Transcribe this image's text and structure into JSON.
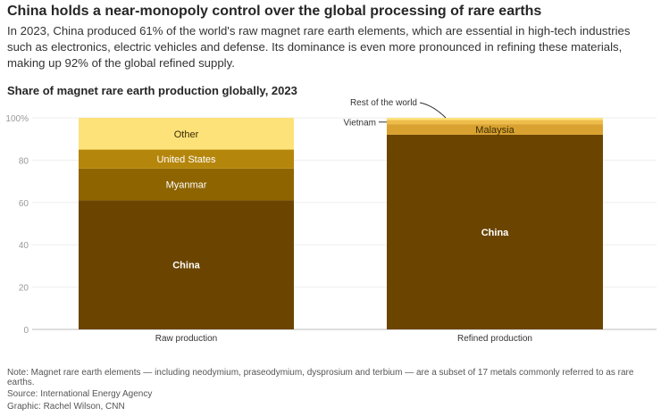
{
  "title": "China holds a near-monopoly control over the global processing of rare earths",
  "subtitle": "In 2023, China produced 61% of the world's raw magnet rare earth elements, which are essential in high-tech industries such as electronics, electric vehicles and defense. Its dominance is even more pronounced in refining these materials, making up 92% of the global refined supply.",
  "note": "Note: Magnet rare earth elements — including neodymium, praseodymium, dysprosium and terbium — are a subset of 17 metals commonly referred to as rare earths.",
  "source": "Source: International Energy Agency",
  "credit": "Graphic: Rachel Wilson, CNN",
  "chart_data": {
    "type": "stacked-bar",
    "title": "Share of magnet rare earth production globally, 2023",
    "ylim": [
      0,
      100
    ],
    "yticks": [
      "0",
      "20",
      "40",
      "60",
      "80",
      "100%"
    ],
    "grid": true,
    "categories": [
      "Raw production",
      "Refined production"
    ],
    "bars": [
      {
        "category": "Raw production",
        "segments": [
          {
            "name": "China",
            "value": 61,
            "color": "#6b4500"
          },
          {
            "name": "Myanmar",
            "value": 15,
            "color": "#8e6400"
          },
          {
            "name": "United States",
            "value": 9,
            "color": "#b5860c"
          },
          {
            "name": "Other",
            "value": 15,
            "color": "#fde27a"
          }
        ]
      },
      {
        "category": "Refined production",
        "segments": [
          {
            "name": "China",
            "value": 92,
            "color": "#6b4500"
          },
          {
            "name": "Malaysia",
            "value": 5,
            "color": "#d9a230"
          },
          {
            "name": "Vietnam",
            "value": 2,
            "color": "#eebc48"
          },
          {
            "name": "Rest of the world",
            "value": 1,
            "color": "#fde27a"
          }
        ]
      }
    ]
  }
}
